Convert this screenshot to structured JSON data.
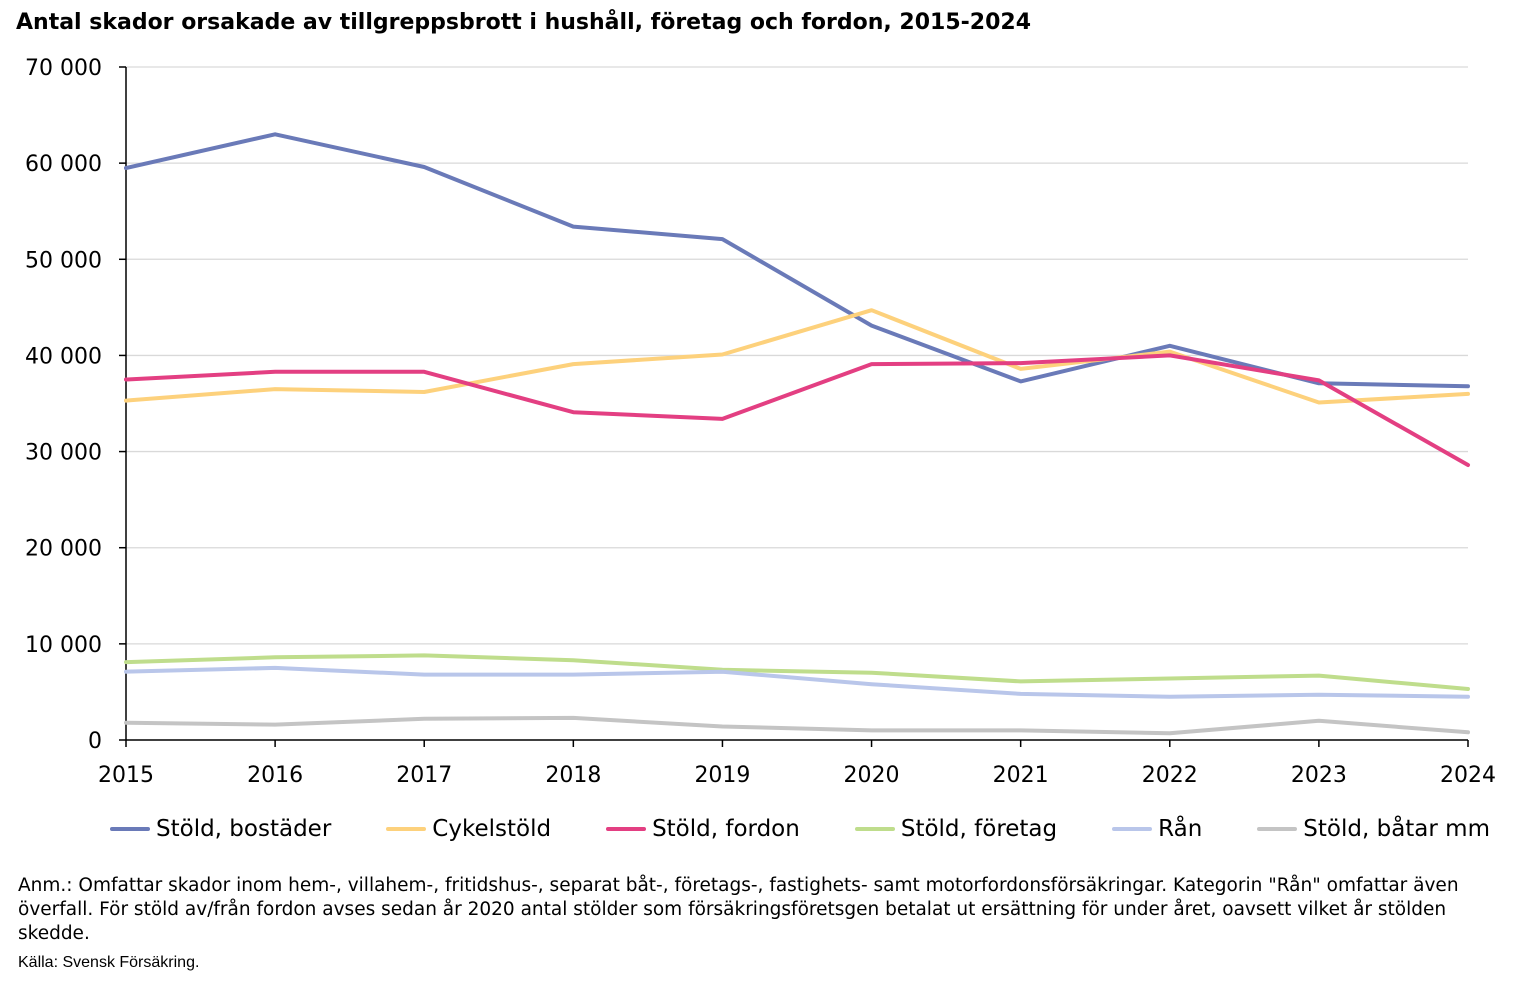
{
  "chart_data": {
    "type": "line",
    "title": "Antal skador orsakade av tillgreppsbrott i hushåll, företag och fordon, 2015-2024",
    "x": [
      "2015",
      "2016",
      "2017",
      "2018",
      "2019",
      "2020",
      "2021",
      "2022",
      "2023",
      "2024"
    ],
    "y_ticks": [
      "0",
      "10 000",
      "20 000",
      "30 000",
      "40 000",
      "50 000",
      "60 000",
      "70 000"
    ],
    "ylim": [
      0,
      70000
    ],
    "grid": true,
    "legend_position": "bottom",
    "series": [
      {
        "name": "Stöld, bostäder",
        "color": "#6a7ab8",
        "values": [
          59500,
          63000,
          59600,
          53400,
          52100,
          43100,
          37300,
          41000,
          37100,
          36800
        ]
      },
      {
        "name": "Cykelstöld",
        "color": "#fdd17c",
        "values": [
          35300,
          36500,
          36200,
          39100,
          40100,
          44700,
          38600,
          40400,
          35100,
          36000
        ]
      },
      {
        "name": "Stöld, fordon",
        "color": "#e33f82",
        "values": [
          37500,
          38300,
          38300,
          34100,
          33400,
          39100,
          39200,
          40000,
          37400,
          28600
        ]
      },
      {
        "name": "Stöld, företag",
        "color": "#bfdd8c",
        "values": [
          8100,
          8600,
          8800,
          8300,
          7300,
          7000,
          6100,
          6400,
          6700,
          5300
        ]
      },
      {
        "name": "Rån",
        "color": "#b9c6ea",
        "values": [
          7100,
          7500,
          6800,
          6800,
          7100,
          5800,
          4800,
          4500,
          4700,
          4500
        ]
      },
      {
        "name": "Stöld, båtar mm",
        "color": "#c4c4c4",
        "values": [
          1800,
          1600,
          2200,
          2300,
          1400,
          1000,
          1000,
          700,
          2000,
          800
        ]
      }
    ]
  },
  "note": "Anm.: Omfattar skador inom hem-, villahem-, fritidshus-, separat båt-, företags-, fastighets- samt motorfordonsförsäkringar. Kategorin \"Rån\" omfattar även överfall. För stöld av/från fordon avses sedan år 2020 antal stölder som försäkringsföretsgen betalat ut ersättning för under året, oavsett vilket år stölden skedde.",
  "source": "Källa: Svensk Försäkring."
}
